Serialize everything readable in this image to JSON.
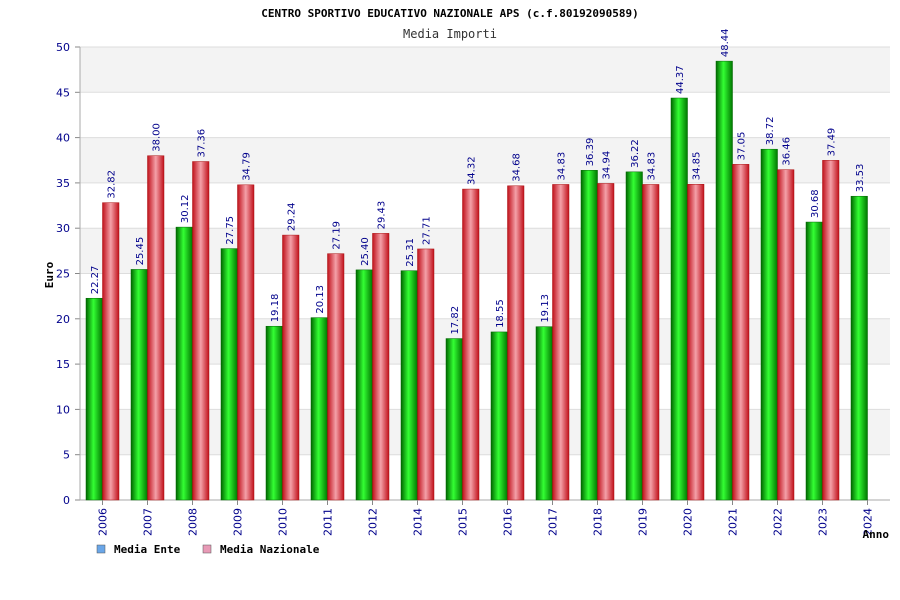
{
  "chart_data": {
    "type": "bar",
    "title": "CENTRO SPORTIVO EDUCATIVO NAZIONALE APS (c.f.80192090589)",
    "subtitle": "Media Importi",
    "xlabel": "Anno",
    "ylabel": "Euro",
    "ylim": [
      0,
      50
    ],
    "yticks": [
      0,
      5,
      10,
      15,
      20,
      25,
      30,
      35,
      40,
      45,
      50
    ],
    "categories": [
      "2006",
      "2007",
      "2008",
      "2009",
      "2010",
      "2011",
      "2012",
      "2014",
      "2015",
      "2016",
      "2017",
      "2018",
      "2019",
      "2020",
      "2021",
      "2022",
      "2023",
      "2024"
    ],
    "series": [
      {
        "name": "Media Ente",
        "color": "#00cc00",
        "values": [
          22.27,
          25.45,
          30.12,
          27.75,
          19.18,
          20.13,
          25.4,
          25.31,
          17.82,
          18.55,
          19.13,
          36.39,
          36.22,
          44.37,
          48.44,
          38.72,
          30.68,
          33.53
        ],
        "labels": [
          "22.27",
          "25.45",
          "30.12",
          "27.75",
          "19.18",
          "20.13",
          "25.40",
          "25.31",
          "17.82",
          "18.55",
          "19.13",
          "36.39",
          "36.22",
          "44.37",
          "48.44",
          "38.72",
          "30.68",
          "33.53"
        ]
      },
      {
        "name": "Media Nazionale",
        "color": "#e8202a",
        "values": [
          32.82,
          38.0,
          37.36,
          34.79,
          29.24,
          27.19,
          29.43,
          27.71,
          34.32,
          34.68,
          34.83,
          34.94,
          34.83,
          34.85,
          37.05,
          36.46,
          37.49,
          null
        ],
        "labels": [
          "32.82",
          "38.00",
          "37.36",
          "34.79",
          "29.24",
          "27.19",
          "29.43",
          "27.71",
          "34.32",
          "34.68",
          "34.83",
          "34.94",
          "34.83",
          "34.85",
          "37.05",
          "36.46",
          "37.49",
          null
        ]
      }
    ],
    "legend": [
      {
        "label": "Media Ente",
        "color": "#6aa6e8"
      },
      {
        "label": "Media Nazionale",
        "color": "#e89ab6"
      }
    ],
    "legend_position": "bottom-left",
    "grid": true
  }
}
